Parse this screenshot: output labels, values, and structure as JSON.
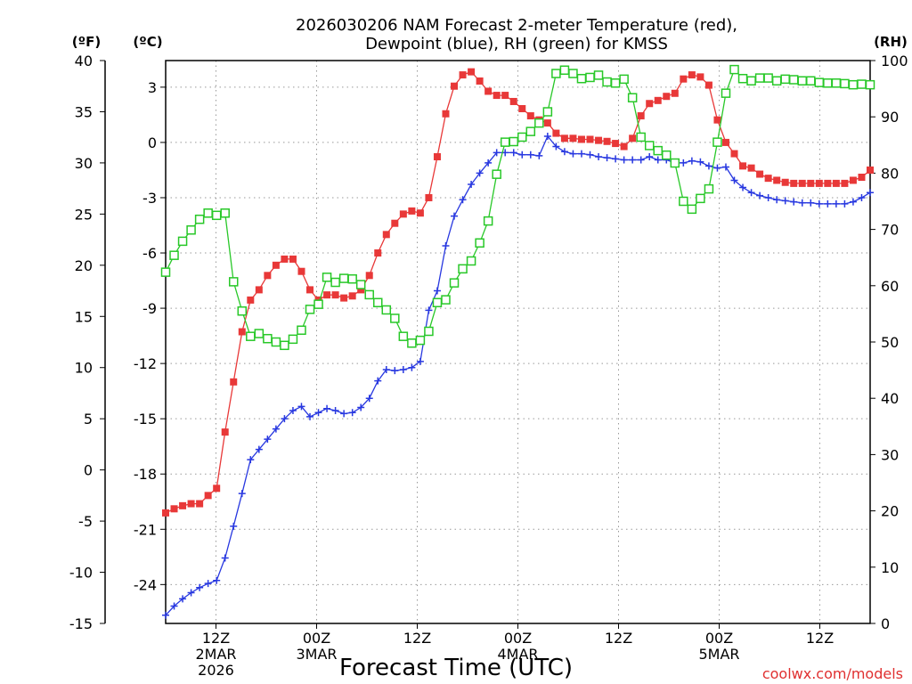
{
  "chart_data": {
    "type": "line",
    "title_line1": "2026030206 NAM Forecast 2-meter Temperature (red),",
    "title_line2": "Dewpoint (blue), RH (green) for KMSS",
    "xlabel": "Forecast Time (UTC)",
    "credit": "coolwx.com/models",
    "units": {
      "fahrenheit": "(ºF)",
      "celsius": "(ºC)",
      "rh": "(RH)"
    },
    "x_range_hours": [
      7,
      77
    ],
    "x_ticks": [
      {
        "hour": 12,
        "lines": [
          "12Z",
          "2MAR",
          "2026"
        ]
      },
      {
        "hour": 22,
        "lines": [
          "00Z",
          "3MAR"
        ]
      },
      {
        "hour": 32,
        "lines": [
          "12Z"
        ]
      },
      {
        "hour": 42,
        "lines": [
          "00Z",
          "4MAR"
        ]
      },
      {
        "hour": 52,
        "lines": [
          "12Z"
        ]
      },
      {
        "hour": 62,
        "lines": [
          "00Z",
          "5MAR"
        ]
      },
      {
        "hour": 72,
        "lines": [
          "12Z"
        ]
      }
    ],
    "y_left_f": {
      "range": [
        -15,
        40
      ],
      "ticks": [
        "-15",
        "-10",
        "-5",
        "0",
        "5",
        "10",
        "15",
        "20",
        "25",
        "30",
        "35",
        "40"
      ]
    },
    "y_left_c": {
      "ticks": [
        "-24",
        "-21",
        "-18",
        "-15",
        "-12",
        "-9",
        "-6",
        "-3",
        "0",
        "3"
      ]
    },
    "y_right_rh": {
      "range": [
        0,
        100
      ],
      "ticks": [
        "0",
        "10",
        "20",
        "30",
        "40",
        "50",
        "60",
        "70",
        "80",
        "90",
        "100"
      ]
    },
    "series": [
      {
        "name": "2-meter Temperature",
        "unit": "F",
        "color": "#e83838",
        "marker": "filled-square",
        "values": [
          -4.2,
          -3.8,
          -3.5,
          -3.3,
          -3.3,
          -2.5,
          -1.8,
          3.7,
          8.6,
          13.5,
          16.6,
          17.6,
          19.0,
          20.0,
          20.6,
          20.6,
          19.4,
          17.6,
          16.6,
          17.1,
          17.1,
          16.8,
          17.0,
          17.6,
          19.0,
          21.2,
          23.0,
          24.1,
          25.0,
          25.3,
          25.1,
          26.6,
          30.6,
          34.8,
          37.5,
          38.6,
          38.9,
          38.0,
          37.0,
          36.6,
          36.6,
          36.0,
          35.3,
          34.6,
          34.2,
          33.9,
          32.9,
          32.4,
          32.4,
          32.3,
          32.3,
          32.2,
          32.1,
          31.9,
          31.6,
          32.4,
          34.6,
          35.8,
          36.1,
          36.5,
          36.8,
          38.2,
          38.6,
          38.4,
          37.6,
          34.2,
          32.0,
          30.9,
          29.7,
          29.5,
          28.9,
          28.5,
          28.3,
          28.1,
          28.0,
          28.0,
          28.0,
          28.0,
          28.0,
          28.0,
          28.0,
          28.3,
          28.6,
          29.3
        ]
      },
      {
        "name": "Dewpoint",
        "unit": "F",
        "color": "#2838e0",
        "marker": "plus",
        "values": [
          -14.2,
          -13.3,
          -12.6,
          -12.0,
          -11.5,
          -11.1,
          -10.8,
          -8.6,
          -5.5,
          -2.3,
          1.0,
          2.0,
          3.0,
          4.0,
          5.0,
          5.8,
          6.2,
          5.2,
          5.6,
          6.0,
          5.8,
          5.5,
          5.6,
          6.1,
          7.0,
          8.7,
          9.8,
          9.7,
          9.8,
          10.0,
          10.6,
          15.6,
          17.5,
          21.9,
          24.8,
          26.4,
          27.9,
          29.0,
          30.0,
          31.0,
          31.0,
          31.0,
          30.8,
          30.8,
          30.7,
          32.6,
          31.6,
          31.1,
          30.9,
          30.9,
          30.8,
          30.6,
          30.5,
          30.4,
          30.3,
          30.3,
          30.3,
          30.6,
          30.3,
          30.3,
          30.0,
          30.0,
          30.2,
          30.1,
          29.7,
          29.5,
          29.6,
          28.3,
          27.6,
          27.1,
          26.8,
          26.6,
          26.4,
          26.3,
          26.2,
          26.1,
          26.1,
          26.0,
          26.0,
          26.0,
          26.0,
          26.2,
          26.6,
          27.1
        ]
      },
      {
        "name": "RH",
        "unit": "%",
        "color": "#28c828",
        "marker": "open-square",
        "values": [
          62.4,
          65.4,
          67.9,
          69.9,
          71.8,
          72.9,
          72.5,
          72.9,
          60.7,
          55.5,
          51.0,
          51.5,
          50.6,
          50.0,
          49.4,
          50.5,
          52.1,
          55.8,
          56.7,
          61.5,
          60.6,
          61.3,
          61.2,
          60.2,
          58.4,
          57.0,
          55.7,
          54.2,
          51.0,
          49.8,
          50.3,
          51.9,
          57.0,
          57.5,
          60.5,
          63.0,
          64.4,
          67.6,
          71.5,
          79.8,
          85.5,
          85.6,
          86.4,
          87.4,
          88.9,
          90.9,
          97.7,
          98.3,
          97.7,
          96.8,
          97.0,
          97.4,
          96.2,
          96.0,
          96.7,
          93.4,
          86.4,
          84.9,
          84.0,
          83.2,
          81.8,
          75.0,
          73.6,
          75.5,
          77.2,
          85.5,
          94.2,
          98.4,
          96.8,
          96.4,
          96.9,
          96.9,
          96.4,
          96.7,
          96.6,
          96.4,
          96.4,
          96.1,
          96.0,
          96.0,
          95.9,
          95.7,
          95.8,
          95.7
        ]
      }
    ]
  }
}
